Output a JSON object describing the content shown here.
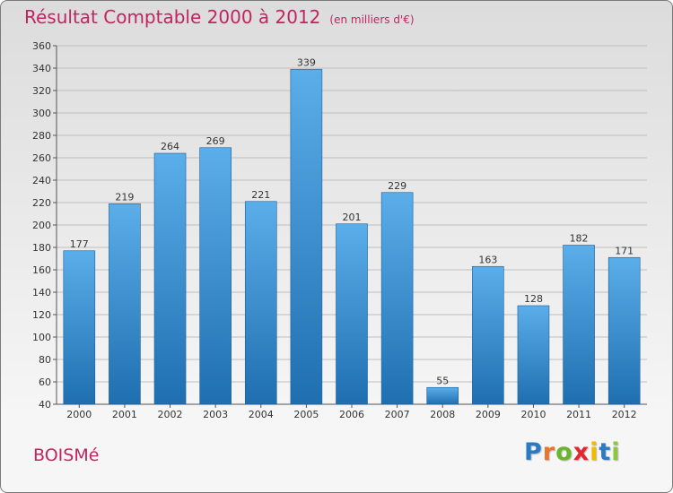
{
  "title": "Résultat Comptable 2000 à 2012",
  "subtitle": "(en milliers d'€)",
  "commune": "BOISMé",
  "logo_letters": [
    "P",
    "r",
    "o",
    "x",
    "i",
    "t",
    "i"
  ],
  "logo_colors": [
    "#2b7bc4",
    "#e8762c",
    "#6bb52a",
    "#e2272e",
    "#f4b800",
    "#2b7bc4",
    "#8dc63f"
  ],
  "colors": {
    "title": "#c0265e",
    "bar_top": "#5aaee9",
    "bar_bottom": "#1f6fb0",
    "grid": "#bfbfbf"
  },
  "chart_data": {
    "type": "bar",
    "title": "Résultat Comptable 2000 à 2012",
    "xlabel": "",
    "ylabel": "",
    "ylim": [
      40,
      360
    ],
    "ytick_step": 20,
    "grid": true,
    "categories": [
      "2000",
      "2001",
      "2002",
      "2003",
      "2004",
      "2005",
      "2006",
      "2007",
      "2008",
      "2009",
      "2010",
      "2011",
      "2012"
    ],
    "values": [
      177,
      219,
      264,
      269,
      221,
      339,
      201,
      229,
      55,
      163,
      128,
      182,
      171
    ]
  }
}
